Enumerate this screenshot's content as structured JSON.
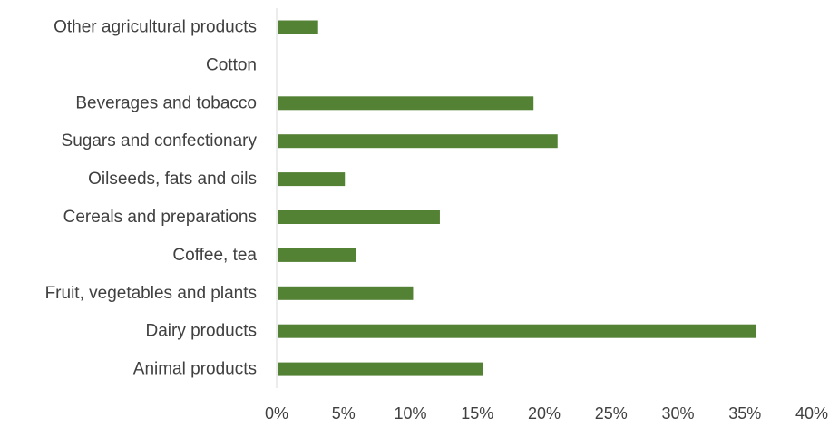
{
  "chart_data": {
    "type": "bar",
    "orientation": "horizontal",
    "title": "",
    "xlabel": "",
    "ylabel": "",
    "categories": [
      "Other agricultural products",
      "Cotton",
      "Beverages and tobacco",
      "Sugars and confectionary",
      "Oilseeds, fats and oils",
      "Cereals and preparations",
      "Coffee, tea",
      "Fruit, vegetables and plants",
      "Dairy products",
      "Animal products"
    ],
    "values": [
      3.1,
      0,
      19.2,
      21.0,
      5.1,
      12.2,
      5.9,
      10.2,
      35.8,
      15.4
    ],
    "xlim": [
      0,
      40
    ],
    "xticks": [
      "0%",
      "5%",
      "10%",
      "15%",
      "20%",
      "25%",
      "30%",
      "35%",
      "40%"
    ],
    "grid": false,
    "legend": "none",
    "bar_color": "#548235"
  }
}
